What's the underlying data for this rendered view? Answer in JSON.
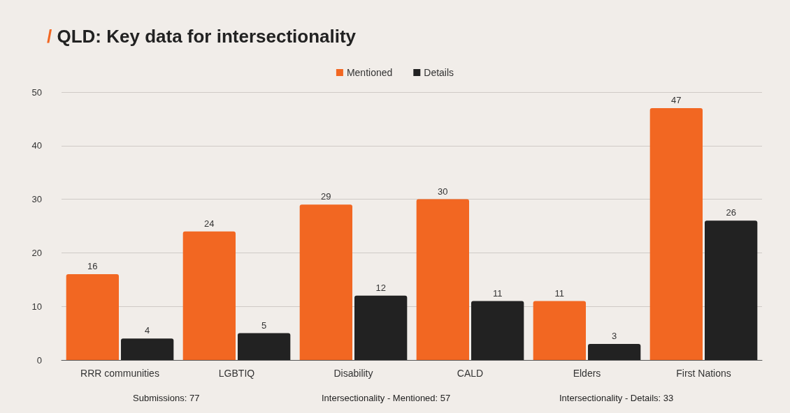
{
  "chart_data": {
    "type": "bar",
    "title": "/ QLD: Key data for intersectionality",
    "categories": [
      "RRR communities",
      "LGBTIQ",
      "Disability",
      "CALD",
      "Elders",
      "First Nations"
    ],
    "series": [
      {
        "name": "Mentioned",
        "color": "#f26722",
        "values": [
          16,
          24,
          29,
          30,
          11,
          47
        ]
      },
      {
        "name": "Details",
        "color": "#222222",
        "values": [
          4,
          5,
          12,
          11,
          3,
          26
        ]
      }
    ],
    "ylim": [
      0,
      50
    ],
    "yticks": [
      0,
      10,
      20,
      30,
      40,
      50
    ],
    "grid": "y",
    "legend": "top",
    "data_labels": true,
    "annotations": [
      "Submissions: 77",
      "Intersectionality - Mentioned: 57",
      "Intersectionality - Details: 33"
    ]
  }
}
